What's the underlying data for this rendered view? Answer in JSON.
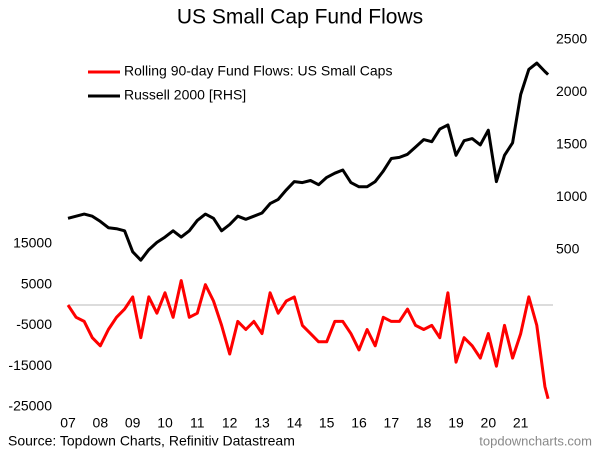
{
  "chart_data": {
    "type": "line",
    "title": "US Small Cap Fund Flows",
    "source": "Source: Topdown Charts, Refinitiv Datastream",
    "watermark": "topdowncharts.com",
    "x": [
      2007,
      2007.25,
      2007.5,
      2007.75,
      2008,
      2008.25,
      2008.5,
      2008.75,
      2009,
      2009.25,
      2009.5,
      2009.75,
      2010,
      2010.25,
      2010.5,
      2010.75,
      2011,
      2011.25,
      2011.5,
      2011.75,
      2012,
      2012.25,
      2012.5,
      2012.75,
      2013,
      2013.25,
      2013.5,
      2013.75,
      2014,
      2014.25,
      2014.5,
      2014.75,
      2015,
      2015.25,
      2015.5,
      2015.75,
      2016,
      2016.25,
      2016.5,
      2016.75,
      2017,
      2017.25,
      2017.5,
      2017.75,
      2018,
      2018.25,
      2018.5,
      2018.75,
      2019,
      2019.25,
      2019.5,
      2019.75,
      2020,
      2020.25,
      2020.5,
      2020.75,
      2021,
      2021.25,
      2021.5,
      2021.75,
      2021.85
    ],
    "series": [
      {
        "name": "Rolling 90-day Fund Flows: US Small Caps",
        "color": "#ff0000",
        "axis": "y",
        "values": [
          0,
          -3000,
          -4000,
          -8000,
          -10000,
          -6000,
          -3000,
          -1000,
          2000,
          -8000,
          2000,
          -2000,
          3000,
          -3000,
          6000,
          -3000,
          -2000,
          5000,
          1000,
          -5000,
          -12000,
          -4000,
          -6000,
          -4000,
          -7000,
          3000,
          -2000,
          1000,
          2000,
          -5000,
          -7000,
          -9000,
          -9000,
          -4000,
          -4000,
          -7000,
          -11000,
          -6000,
          -10000,
          -3000,
          -4000,
          -4000,
          -1000,
          -5000,
          -6000,
          -5000,
          -8000,
          3000,
          -14000,
          -8000,
          -10000,
          -13000,
          -7000,
          -15000,
          -5000,
          -13000,
          -7000,
          2000,
          -5000,
          -20000,
          -23000
        ]
      },
      {
        "name": "Russell 2000 [RHS]",
        "color": "#000000",
        "axis": "y2",
        "values": [
          800,
          820,
          840,
          820,
          770,
          710,
          700,
          680,
          480,
          400,
          500,
          570,
          620,
          680,
          620,
          680,
          780,
          840,
          800,
          680,
          740,
          820,
          790,
          820,
          850,
          940,
          980,
          1070,
          1150,
          1140,
          1160,
          1120,
          1190,
          1230,
          1260,
          1140,
          1100,
          1100,
          1150,
          1250,
          1370,
          1380,
          1410,
          1480,
          1550,
          1530,
          1650,
          1690,
          1400,
          1540,
          1560,
          1500,
          1640,
          1150,
          1400,
          1520,
          1980,
          2220,
          2280,
          2200,
          2170
        ]
      }
    ],
    "xlim": [
      2007,
      2022
    ],
    "xticks": [
      {
        "value": 2007,
        "label": "07"
      },
      {
        "value": 2008,
        "label": "08"
      },
      {
        "value": 2009,
        "label": "09"
      },
      {
        "value": 2010,
        "label": "10"
      },
      {
        "value": 2011,
        "label": "11"
      },
      {
        "value": 2012,
        "label": "12"
      },
      {
        "value": 2013,
        "label": "13"
      },
      {
        "value": 2014,
        "label": "14"
      },
      {
        "value": 2015,
        "label": "15"
      },
      {
        "value": 2016,
        "label": "16"
      },
      {
        "value": 2017,
        "label": "17"
      },
      {
        "value": 2018,
        "label": "18"
      },
      {
        "value": 2019,
        "label": "19"
      },
      {
        "value": 2020,
        "label": "20"
      },
      {
        "value": 2021,
        "label": "21"
      }
    ],
    "ylim": [
      -25000,
      65000
    ],
    "yticks": [
      15000,
      5000,
      -5000,
      -15000,
      -25000
    ],
    "y2lim": [
      -1000,
      2500
    ],
    "y2ticks": [
      500,
      1000,
      1500,
      2000,
      2500
    ],
    "zero_line": true,
    "legend": "upper left"
  }
}
